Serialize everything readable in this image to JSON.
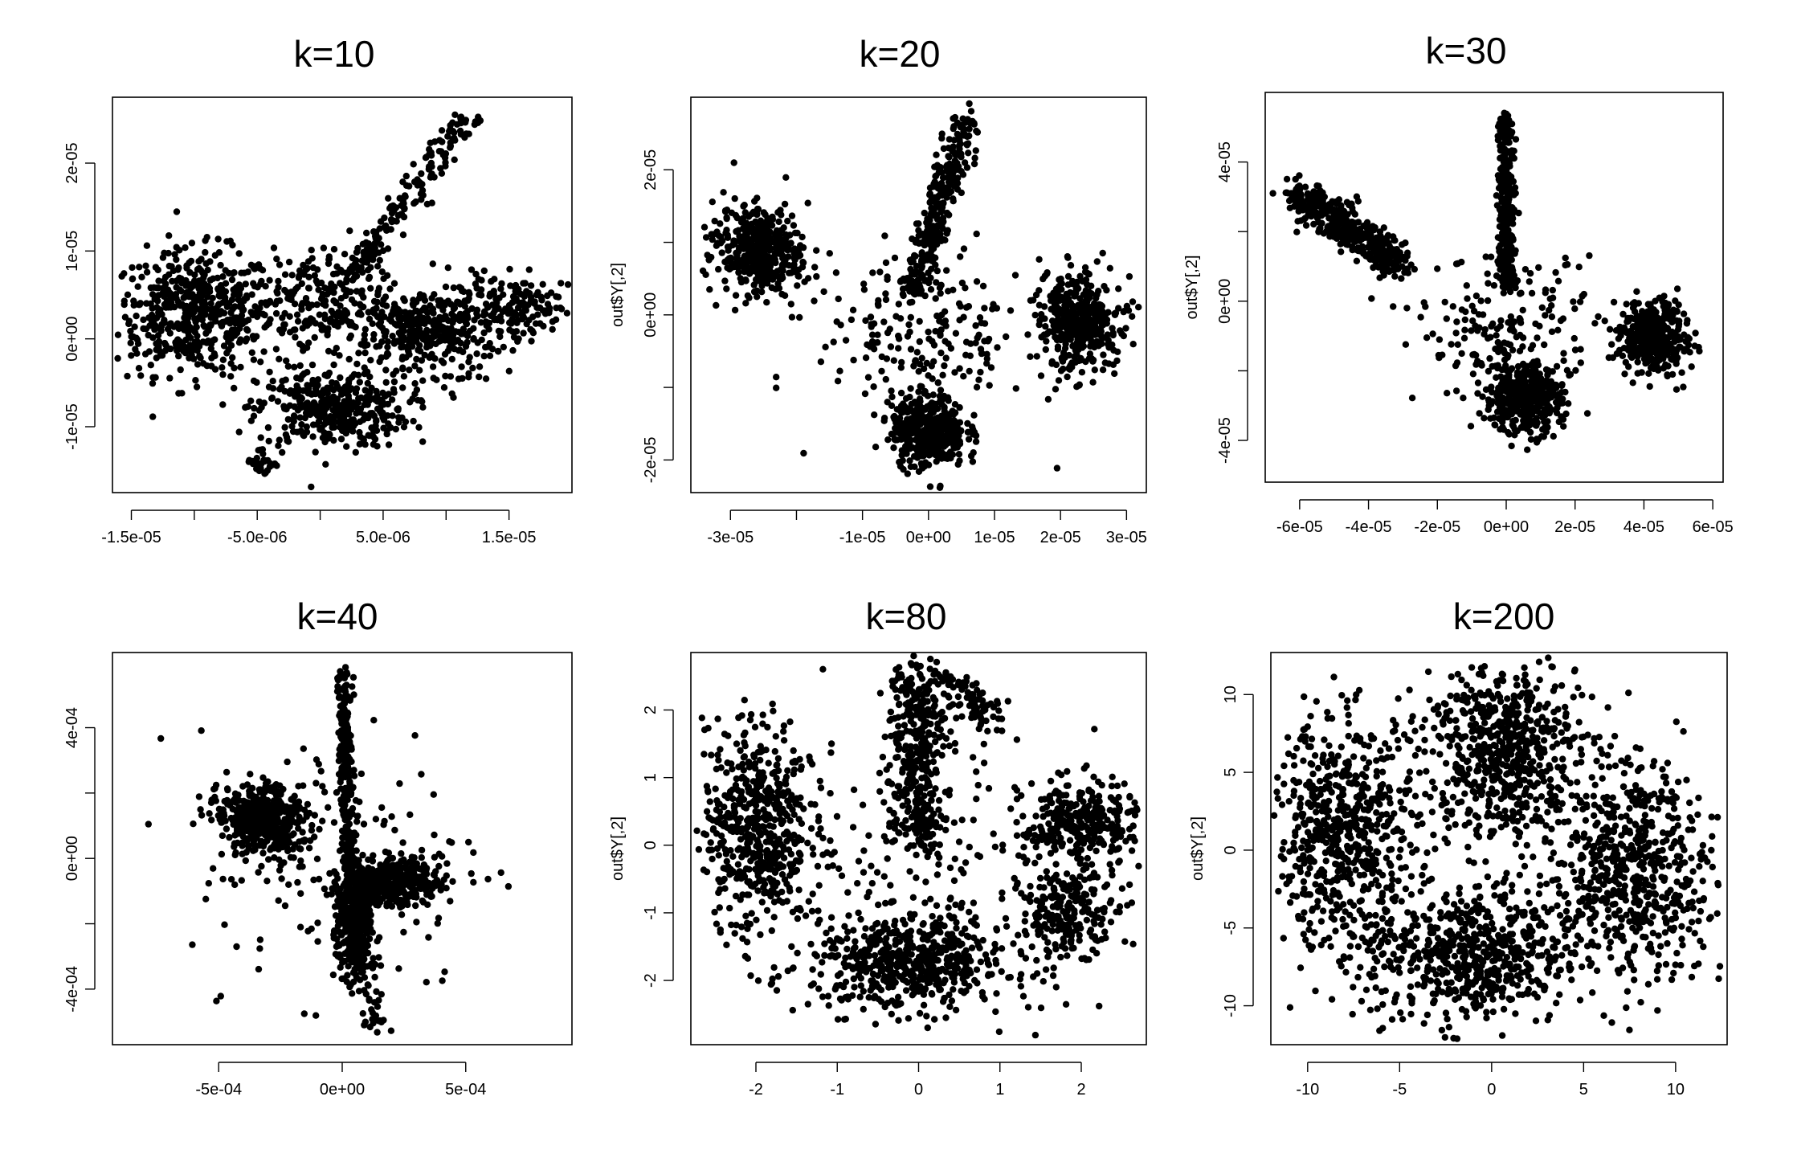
{
  "figure": {
    "panels": [
      {
        "id": "k10",
        "title": "k=10"
      },
      {
        "id": "k20",
        "title": "k=20"
      },
      {
        "id": "k30",
        "title": "k=30"
      },
      {
        "id": "k40",
        "title": "k=40"
      },
      {
        "id": "k80",
        "title": "k=80"
      },
      {
        "id": "k200",
        "title": "k=200"
      }
    ]
  },
  "colors": {
    "point": "#000000",
    "axis": "#000000",
    "background": "#ffffff"
  },
  "chart_data": [
    {
      "type": "scatter",
      "title": "k=10",
      "xlabel": "",
      "ylabel": "",
      "xlim": [
        -1.65e-05,
        2e-05
      ],
      "ylim": [
        -1.75e-05,
        2.75e-05
      ],
      "xticks": [
        -1.5e-05,
        -5e-06,
        5e-06,
        1.5e-05
      ],
      "xtick_labels": [
        "-1.5e-05",
        "-5.0e-06",
        "5.0e-06",
        "1.5e-05"
      ],
      "xtick_minor": [
        -1e-05,
        0,
        1e-05
      ],
      "yticks": [
        -1e-05,
        0,
        1e-05,
        2e-05
      ],
      "ytick_labels": [
        "-1e-05",
        "0e+00",
        "1e-05",
        "2e-05"
      ],
      "clusters": [
        {
          "cx": -1e-05,
          "cy": 3e-06,
          "sx": 3.2e-06,
          "sy": 3.5e-06,
          "n": 520,
          "rot": 0
        },
        {
          "cx": 1e-06,
          "cy": -8e-06,
          "sx": 3e-06,
          "sy": 2.2e-06,
          "n": 380,
          "rot": 0
        },
        {
          "cx": 9e-06,
          "cy": 1e-06,
          "sx": 3.5e-06,
          "sy": 2.5e-06,
          "n": 420,
          "rot": 0.4
        },
        {
          "cx": 1.6e-05,
          "cy": 4e-06,
          "sx": 2e-06,
          "sy": 1.5e-06,
          "n": 120,
          "rot": 0
        },
        {
          "cx": -4.5e-06,
          "cy": -1.4e-05,
          "sx": 7e-07,
          "sy": 9e-07,
          "n": 30,
          "rot": 0
        },
        {
          "cx": -1e-06,
          "cy": 4e-06,
          "sx": 3e-06,
          "sy": 3e-06,
          "n": 220,
          "rot": 0
        }
      ],
      "strokes": [
        {
          "x1": 2e-06,
          "y1": 6e-06,
          "x2": 1.2e-05,
          "y2": 2.6e-05,
          "n": 180,
          "w": 6e-07
        }
      ]
    },
    {
      "type": "scatter",
      "title": "k=20",
      "xlabel": "",
      "ylabel": "out$Y[,2]",
      "xlim": [
        -3.6e-05,
        3.3e-05
      ],
      "ylim": [
        -2.45e-05,
        3e-05
      ],
      "xticks": [
        -3e-05,
        -1e-05,
        0,
        1e-05,
        2e-05,
        3e-05
      ],
      "xtick_labels": [
        "-3e-05",
        "-1e-05",
        "0e+00",
        "1e-05",
        "2e-05",
        "3e-05"
      ],
      "xtick_minor": [
        -2e-05
      ],
      "yticks": [
        -2e-05,
        0,
        2e-05
      ],
      "ytick_labels": [
        "-2e-05",
        "0e+00",
        "2e-05"
      ],
      "ytick_minor": [
        -1e-05,
        1e-05
      ],
      "clusters": [
        {
          "cx": -2.6e-05,
          "cy": 9e-06,
          "sx": 3.5e-06,
          "sy": 3e-06,
          "n": 420,
          "rot": -0.3
        },
        {
          "cx": 0.0,
          "cy": -1.6e-05,
          "sx": 2.8e-06,
          "sy": 2.5e-06,
          "n": 420,
          "rot": 0
        },
        {
          "cx": 2.3e-05,
          "cy": -1e-06,
          "sx": 3.2e-06,
          "sy": 3.2e-06,
          "n": 420,
          "rot": 0.5
        },
        {
          "cx": -1e-06,
          "cy": -3e-06,
          "sx": 8e-06,
          "sy": 6e-06,
          "n": 200,
          "rot": 0
        }
      ],
      "strokes": [
        {
          "x1": -3e-06,
          "y1": 2e-06,
          "x2": 6e-06,
          "y2": 2.7e-05,
          "n": 300,
          "w": 1.2e-06
        }
      ]
    },
    {
      "type": "scatter",
      "title": "k=30",
      "xlabel": "",
      "ylabel": "out$Y[,2]",
      "xlim": [
        -7e-05,
        6.3e-05
      ],
      "ylim": [
        -5.2e-05,
        6e-05
      ],
      "xticks": [
        -6e-05,
        -4e-05,
        -2e-05,
        0,
        2e-05,
        4e-05,
        6e-05
      ],
      "xtick_labels": [
        "-6e-05",
        "-4e-05",
        "-2e-05",
        "0e+00",
        "2e-05",
        "4e-05",
        "6e-05"
      ],
      "yticks": [
        -4e-05,
        0,
        4e-05
      ],
      "ytick_labels": [
        "-4e-05",
        "0e+00",
        "4e-05"
      ],
      "ytick_minor": [
        -2e-05,
        2e-05
      ],
      "clusters": [
        {
          "cx": 5e-06,
          "cy": -2.8e-05,
          "sx": 5.5e-06,
          "sy": 5e-06,
          "n": 420,
          "rot": 0
        },
        {
          "cx": 4.3e-05,
          "cy": -1e-05,
          "sx": 5e-06,
          "sy": 5e-06,
          "n": 400,
          "rot": 0.5
        },
        {
          "cx": 0.0,
          "cy": -8e-06,
          "sx": 1.3e-05,
          "sy": 1e-05,
          "n": 180,
          "rot": 0
        }
      ],
      "strokes": [
        {
          "x1": -6.2e-05,
          "y1": 3.2e-05,
          "x2": -3e-05,
          "y2": 1e-05,
          "n": 420,
          "w": 3e-06
        },
        {
          "x1": 0.0,
          "y1": 5.3e-05,
          "x2": 0.0,
          "y2": 4e-06,
          "n": 320,
          "w": 1.2e-06
        }
      ]
    },
    {
      "type": "scatter",
      "title": "k=40",
      "xlabel": "",
      "ylabel": "",
      "xlim": [
        -0.00093,
        0.00093
      ],
      "ylim": [
        -0.00057,
        0.00063
      ],
      "xticks": [
        -0.0005,
        0,
        0.0005
      ],
      "xtick_labels": [
        "-5e-04",
        "0e+00",
        "5e-04"
      ],
      "yticks": [
        -0.0004,
        0,
        0.0004
      ],
      "ytick_labels": [
        "-4e-04",
        "0e+00",
        "4e-04"
      ],
      "ytick_minor": [
        -0.0002,
        0.0002
      ],
      "clusters": [
        {
          "cx": -0.00033,
          "cy": 0.00012,
          "sx": 9e-05,
          "sy": 5e-05,
          "n": 480,
          "rot": -0.35
        },
        {
          "cx": 0.0002,
          "cy": -7e-05,
          "sx": 0.0001,
          "sy": 3.5e-05,
          "n": 380,
          "rot": 0
        },
        {
          "cx": 5e-05,
          "cy": -0.00022,
          "sx": 3.5e-05,
          "sy": 8e-05,
          "n": 320,
          "rot": 0
        },
        {
          "cx": 0.0,
          "cy": 0.0,
          "sx": 0.0003,
          "sy": 0.0002,
          "n": 160,
          "rot": 0
        }
      ],
      "strokes": [
        {
          "x1": 0.0,
          "y1": 0.00058,
          "x2": 3e-05,
          "y2": -5e-05,
          "n": 260,
          "w": 1.5e-05
        },
        {
          "x1": 4e-05,
          "y1": -0.0002,
          "x2": 0.00015,
          "y2": -0.00052,
          "n": 60,
          "w": 2.5e-05
        }
      ]
    },
    {
      "type": "scatter",
      "title": "k=80",
      "xlabel": "",
      "ylabel": "out$Y[,2]",
      "xlim": [
        -2.8,
        2.8
      ],
      "ylim": [
        -2.95,
        2.85
      ],
      "xticks": [
        -2,
        -1,
        0,
        1,
        2
      ],
      "xtick_labels": [
        "-2",
        "-1",
        "0",
        "1",
        "2"
      ],
      "yticks": [
        -2,
        -1,
        0,
        1,
        2
      ],
      "ytick_labels": [
        "-2",
        "-1",
        "0",
        "1",
        "2"
      ],
      "clusters": [
        {
          "cx": -2.0,
          "cy": 0.3,
          "sx": 0.32,
          "sy": 0.75,
          "n": 520,
          "rot": 0
        },
        {
          "cx": -0.1,
          "cy": -1.75,
          "sx": 0.6,
          "sy": 0.35,
          "n": 560,
          "rot": 0
        },
        {
          "cx": 2.0,
          "cy": 0.3,
          "sx": 0.35,
          "sy": 0.32,
          "n": 300,
          "rot": 0
        },
        {
          "cx": 1.85,
          "cy": -1.0,
          "sx": 0.3,
          "sy": 0.3,
          "n": 220,
          "rot": 0
        },
        {
          "cx": 0.0,
          "cy": 0.0,
          "sx": 1.4,
          "sy": 1.1,
          "n": 220,
          "rot": 0
        }
      ],
      "strokes": [
        {
          "x1": 0.0,
          "y1": 2.6,
          "x2": 0.0,
          "y2": 0.0,
          "n": 380,
          "w": 0.18
        },
        {
          "x1": 0.3,
          "y1": 2.6,
          "x2": 0.9,
          "y2": 1.8,
          "n": 80,
          "w": 0.12
        }
      ]
    },
    {
      "type": "scatter",
      "title": "k=200",
      "xlabel": "",
      "ylabel": "out$Y[,2]",
      "xlim": [
        -12.0,
        12.8
      ],
      "ylim": [
        -12.5,
        12.7
      ],
      "xticks": [
        -10,
        -5,
        0,
        5,
        10
      ],
      "xtick_labels": [
        "-10",
        "-5",
        "0",
        "5",
        "10"
      ],
      "yticks": [
        -10,
        -5,
        0,
        5,
        10
      ],
      "ytick_labels": [
        "-10",
        "-5",
        "0",
        "5",
        "10"
      ],
      "clusters": [
        {
          "cx": -8.0,
          "cy": 1.0,
          "sx": 2.0,
          "sy": 3.6,
          "n": 620,
          "rot": 0
        },
        {
          "cx": 0.5,
          "cy": 6.5,
          "sx": 2.1,
          "sy": 3.0,
          "n": 620,
          "rot": 0
        },
        {
          "cx": 7.5,
          "cy": -1.0,
          "sx": 2.2,
          "sy": 3.4,
          "n": 620,
          "rot": 0.2
        },
        {
          "cx": -1.0,
          "cy": -6.8,
          "sx": 3.0,
          "sy": 2.2,
          "n": 620,
          "rot": 0
        }
      ],
      "strokes": []
    }
  ]
}
